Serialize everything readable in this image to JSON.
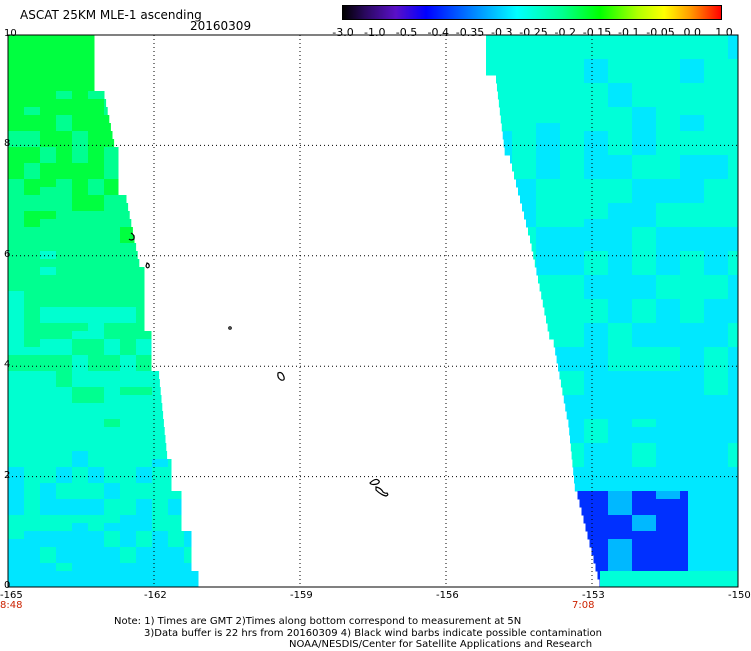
{
  "header": {
    "title": "ASCAT 25KM MLE-1 ascending",
    "date": "20160309"
  },
  "colorbar": {
    "labels": [
      "-3.0",
      "-1.0",
      "-0.5",
      "-0.4",
      "-0.35",
      "-0.3",
      "-0.25",
      "-0.2",
      "-0.15",
      "-0.1",
      "-0.05",
      "0.0",
      "1.0"
    ],
    "colors": [
      "#000000",
      "#3a0a6e",
      "#4a00e8",
      "#0000ff",
      "#0070ff",
      "#00b8ff",
      "#00ffff",
      "#00ff9a",
      "#00ff00",
      "#90ff00",
      "#ffff00",
      "#ff9900",
      "#ff0000"
    ]
  },
  "map": {
    "lat_ticks": [
      "10",
      "8",
      "6",
      "4",
      "2",
      "0"
    ],
    "lon_ticks": [
      "-165",
      "-162",
      "-159",
      "-156",
      "-153",
      "-150"
    ],
    "lon_range": [
      -165,
      -150
    ],
    "lat_range": [
      0,
      10
    ],
    "swath_times": [
      "8:48",
      "7:08"
    ],
    "west_swath_colors": [
      "#00ff40",
      "#00ff90",
      "#00ffd0",
      "#00e6ff"
    ],
    "east_swath_colors": [
      "#00ffd8",
      "#00e8ff",
      "#00b8ff",
      "#0030ff"
    ]
  },
  "notes": {
    "line1": "Note: 1) Times are GMT 2)Times along bottom correspond to measurement at 5N",
    "line2": "3)Data buffer is 22 hrs from 20160309 4) Black wind barbs indicate possible contamination",
    "line3": "NOAA/NESDIS/Center for Satellite Applications and Research"
  }
}
